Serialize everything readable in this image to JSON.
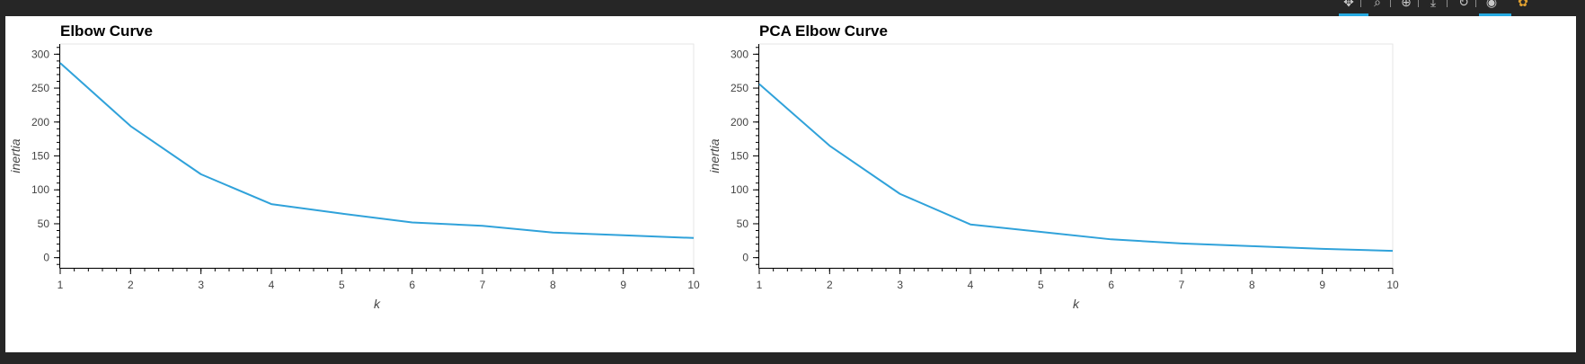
{
  "chart_data": [
    {
      "type": "line",
      "title": "Elbow Curve",
      "xlabel": "k",
      "ylabel": "inertia",
      "x": [
        1,
        2,
        3,
        4,
        5,
        6,
        7,
        8,
        9,
        10
      ],
      "series": [
        {
          "values": [
            287,
            194,
            123,
            79,
            65,
            52,
            47,
            37,
            33,
            29
          ]
        }
      ],
      "xlim": [
        1,
        10
      ],
      "ylim": [
        -15,
        315
      ],
      "xticks": [
        1,
        2,
        3,
        4,
        5,
        6,
        7,
        8,
        9,
        10
      ],
      "yticks": [
        0,
        50,
        100,
        150,
        200,
        250,
        300
      ],
      "grid": false,
      "line_color": "#30a2da"
    },
    {
      "type": "line",
      "title": "PCA Elbow Curve",
      "xlabel": "k",
      "ylabel": "inertia",
      "x": [
        1,
        2,
        3,
        4,
        5,
        6,
        7,
        8,
        9,
        10
      ],
      "series": [
        {
          "values": [
            256,
            165,
            94,
            49,
            38,
            27,
            21,
            17,
            13,
            10
          ]
        }
      ],
      "xlim": [
        1,
        10
      ],
      "ylim": [
        -15,
        315
      ],
      "xticks": [
        1,
        2,
        3,
        4,
        5,
        6,
        7,
        8,
        9,
        10
      ],
      "yticks": [
        0,
        50,
        100,
        150,
        200,
        250,
        300
      ],
      "grid": false,
      "line_color": "#30a2da"
    }
  ],
  "toolbar": {
    "icons": [
      "pan-icon",
      "box-zoom-icon",
      "wheel-zoom-icon",
      "save-icon",
      "reset-icon",
      "hover-icon",
      "bokeh-logo-icon"
    ],
    "active_color": "#26aae1"
  }
}
